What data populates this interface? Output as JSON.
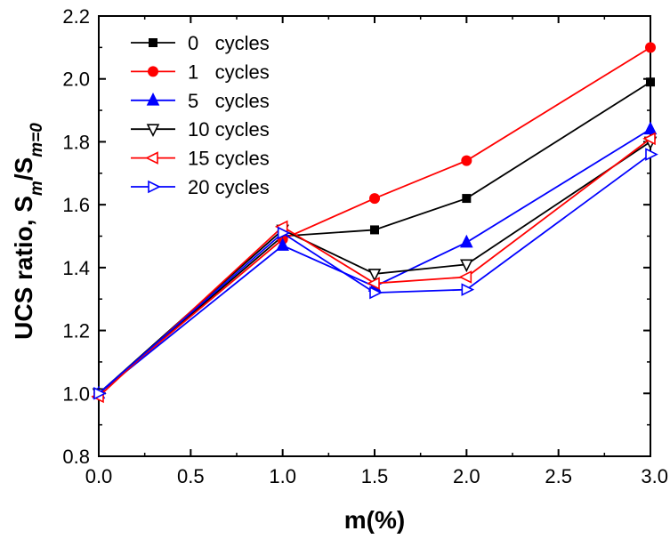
{
  "chart_data": {
    "type": "line",
    "title": "",
    "xlabel": "m(%)",
    "ylabel_parts": [
      "UCS ratio, S",
      "m",
      "/S",
      "m=0"
    ],
    "xlim": [
      0.0,
      3.0
    ],
    "ylim": [
      0.8,
      2.2
    ],
    "xticks": [
      "0.0",
      "0.5",
      "1.0",
      "1.5",
      "2.0",
      "2.5",
      "3.0"
    ],
    "yticks": [
      "0.8",
      "1.0",
      "1.2",
      "1.4",
      "1.6",
      "1.8",
      "2.0",
      "2.2"
    ],
    "x": [
      0.0,
      1.0,
      1.5,
      2.0,
      3.0
    ],
    "legend_position": "top-left",
    "series": [
      {
        "name": "0   cycles",
        "color": "#000000",
        "marker": "square",
        "values": [
          1.0,
          1.5,
          1.52,
          1.62,
          1.99
        ]
      },
      {
        "name": "1   cycles",
        "color": "#ff0000",
        "marker": "circle",
        "values": [
          1.0,
          1.49,
          1.62,
          1.74,
          2.1
        ]
      },
      {
        "name": "5   cycles",
        "color": "#0000ff",
        "marker": "triangle-up",
        "values": [
          1.0,
          1.47,
          1.34,
          1.48,
          1.84
        ]
      },
      {
        "name": "10 cycles",
        "color": "#000000",
        "marker": "triangle-down",
        "values": [
          1.0,
          1.52,
          1.38,
          1.41,
          1.8
        ]
      },
      {
        "name": "15 cycles",
        "color": "#ff0000",
        "marker": "triangle-left",
        "values": [
          0.99,
          1.53,
          1.35,
          1.37,
          1.81
        ]
      },
      {
        "name": "20 cycles",
        "color": "#0000ff",
        "marker": "triangle-right",
        "values": [
          1.0,
          1.51,
          1.32,
          1.33,
          1.76
        ]
      }
    ]
  }
}
